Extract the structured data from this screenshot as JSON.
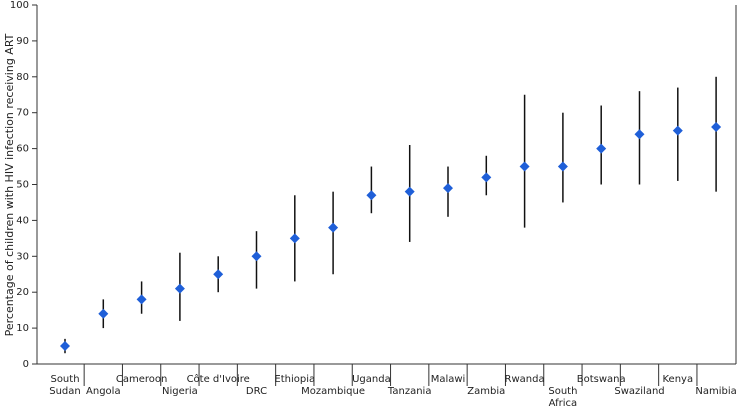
{
  "chart_data": {
    "type": "errorbar",
    "y_label": "Percentage of children with HIV infection receiving ART",
    "categories": [
      "South Sudan",
      "Angola",
      "Cameroon",
      "Nigeria",
      "Côte d'Ivoire",
      "DRC",
      "Ethiopia",
      "Mozambique",
      "Uganda",
      "Tanzania",
      "Malawi",
      "Zambia",
      "Rwanda",
      "South Africa",
      "Botswana",
      "Swaziland",
      "Kenya",
      "Namibia"
    ],
    "series": [
      {
        "color": "#1f5fd8",
        "values": [
          5,
          14,
          18,
          21,
          25,
          30,
          35,
          38,
          47,
          48,
          49,
          52,
          55,
          55,
          60,
          64,
          65,
          66
        ],
        "lower": [
          3,
          10,
          14,
          12,
          20,
          21,
          23,
          25,
          42,
          34,
          41,
          47,
          38,
          45,
          50,
          50,
          51,
          48
        ],
        "upper": [
          7,
          18,
          23,
          31,
          30,
          37,
          47,
          48,
          55,
          61,
          55,
          58,
          75,
          70,
          72,
          76,
          77,
          80
        ]
      }
    ],
    "ylim": [
      0,
      100
    ],
    "yticks": [
      0,
      10,
      20,
      30,
      40,
      50,
      60,
      70,
      80,
      90,
      100
    ]
  }
}
